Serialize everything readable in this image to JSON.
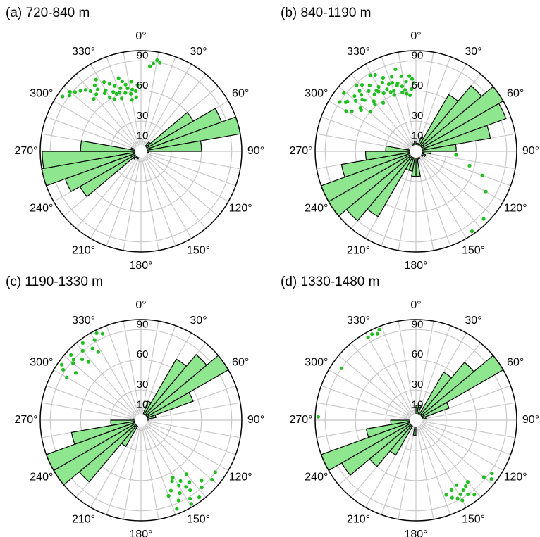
{
  "chart_data": [
    {
      "type": "rose",
      "title": "(a) 720-840 m",
      "bins": [
        0,
        10,
        20,
        30,
        40,
        50,
        60,
        70,
        80,
        90,
        100,
        110,
        120,
        130,
        140,
        150,
        160,
        170,
        180,
        190,
        200,
        210,
        220,
        230,
        240,
        250,
        260,
        270,
        280,
        290,
        300,
        310,
        320,
        330,
        340,
        350,
        360
      ],
      "counts": [
        5,
        5,
        5,
        5,
        12,
        60,
        85,
        100,
        60,
        8,
        5,
        3,
        3,
        3,
        3,
        3,
        3,
        5,
        5,
        5,
        8,
        8,
        10,
        70,
        80,
        100,
        98,
        60,
        10,
        5,
        5,
        3,
        3,
        3,
        3,
        5
      ],
      "points": {
        "theta": [
          330,
          335,
          340,
          345,
          350,
          325,
          320,
          318,
          315,
          312,
          322,
          328,
          338,
          342,
          348,
          352,
          355,
          357,
          345,
          335,
          325,
          310,
          305,
          308,
          330,
          340,
          350,
          355,
          333,
          347,
          337,
          343,
          8,
          10,
          12,
          6,
          318,
          328,
          332,
          352
        ],
        "r": [
          70,
          65,
          62,
          60,
          58,
          75,
          78,
          82,
          85,
          88,
          72,
          68,
          70,
          66,
          64,
          62,
          60,
          66,
          72,
          74,
          80,
          92,
          95,
          90,
          62,
          56,
          52,
          54,
          58,
          68,
          62,
          76,
          88,
          92,
          90,
          85,
          70,
          84,
          78,
          70
        ]
      },
      "rlim": [
        0,
        100
      ],
      "rticks": [
        10,
        30,
        60,
        90
      ],
      "thetaticks": [
        {
          "value": 0,
          "label": "0°"
        },
        {
          "value": 30,
          "label": "30°"
        },
        {
          "value": 60,
          "label": "60°"
        },
        {
          "value": 90,
          "label": "90°"
        },
        {
          "value": 120,
          "label": "120°"
        },
        {
          "value": 150,
          "label": "150°"
        },
        {
          "value": 180,
          "label": "180°"
        },
        {
          "value": 210,
          "label": "210°"
        },
        {
          "value": 240,
          "label": "240°"
        },
        {
          "value": 270,
          "label": "270°"
        },
        {
          "value": 300,
          "label": "300°"
        },
        {
          "value": 330,
          "label": "330°"
        }
      ],
      "bar_color": "#8ee68e",
      "edge_color": "#000000",
      "point_color": "#1fbf1f",
      "grid": true
    },
    {
      "type": "rose",
      "title": "(b) 840-1190 m",
      "bins": [
        0,
        10,
        20,
        30,
        40,
        50,
        60,
        70,
        80,
        90,
        100,
        110,
        120,
        130,
        140,
        150,
        160,
        170,
        180,
        190,
        200,
        210,
        220,
        230,
        240,
        250,
        260,
        270,
        280,
        290,
        300,
        310,
        320,
        330,
        340,
        350,
        360
      ],
      "counts": [
        8,
        8,
        15,
        65,
        85,
        100,
        95,
        75,
        40,
        15,
        8,
        10,
        8,
        5,
        5,
        8,
        8,
        25,
        25,
        20,
        20,
        75,
        90,
        100,
        100,
        75,
        50,
        30,
        8,
        5,
        5,
        5,
        5,
        8,
        8,
        10
      ],
      "points": {
        "theta": [
          300,
          302,
          305,
          308,
          310,
          312,
          315,
          318,
          320,
          322,
          325,
          328,
          330,
          332,
          335,
          338,
          340,
          342,
          345,
          348,
          350,
          352,
          355,
          358,
          303,
          307,
          311,
          316,
          321,
          326,
          331,
          336,
          341,
          346,
          351,
          356,
          309,
          314,
          319,
          324,
          329,
          334,
          339,
          344,
          349,
          354,
          306,
          317,
          327,
          337,
          347,
          357,
          105,
          110,
          120,
          135,
          145,
          95
        ],
        "r": [
          80,
          75,
          85,
          70,
          78,
          82,
          72,
          88,
          65,
          76,
          80,
          70,
          74,
          86,
          68,
          72,
          64,
          78,
          70,
          66,
          62,
          70,
          75,
          68,
          90,
          68,
          60,
          78,
          85,
          58,
          66,
          80,
          72,
          84,
          58,
          62,
          92,
          74,
          62,
          70,
          88,
          76,
          60,
          68,
          76,
          56,
          84,
          82,
          72,
          64,
          60,
          72,
          55,
          70,
          80,
          95,
          97,
          40
        ]
      },
      "rlim": [
        0,
        100
      ],
      "rticks": [
        10,
        30,
        60,
        90
      ],
      "thetaticks": [
        {
          "value": 0,
          "label": "0°"
        },
        {
          "value": 30,
          "label": "30°"
        },
        {
          "value": 60,
          "label": "60°"
        },
        {
          "value": 90,
          "label": "90°"
        },
        {
          "value": 120,
          "label": "120°"
        },
        {
          "value": 150,
          "label": "150°"
        },
        {
          "value": 180,
          "label": "180°"
        },
        {
          "value": 210,
          "label": "210°"
        },
        {
          "value": 240,
          "label": "240°"
        },
        {
          "value": 270,
          "label": "270°"
        },
        {
          "value": 300,
          "label": "300°"
        },
        {
          "value": 330,
          "label": "330°"
        }
      ],
      "bar_color": "#8ee68e",
      "edge_color": "#000000",
      "point_color": "#1fbf1f",
      "grid": true
    },
    {
      "type": "rose",
      "title": "(c) 1190-1330 m",
      "bins": [
        0,
        10,
        20,
        30,
        40,
        50,
        60,
        70,
        80,
        90,
        100,
        110,
        120,
        130,
        140,
        150,
        160,
        170,
        180,
        190,
        200,
        210,
        220,
        230,
        240,
        250,
        260,
        270,
        280,
        290,
        300,
        310,
        320,
        330,
        340,
        350,
        360
      ],
      "counts": [
        5,
        5,
        20,
        70,
        85,
        100,
        55,
        15,
        8,
        5,
        3,
        3,
        3,
        3,
        3,
        3,
        3,
        5,
        5,
        5,
        5,
        30,
        80,
        100,
        100,
        70,
        30,
        8,
        5,
        3,
        3,
        3,
        3,
        3,
        5,
        5
      ],
      "points": {
        "theta": [
          300,
          303,
          306,
          310,
          313,
          316,
          320,
          323,
          326,
          330,
          333,
          336,
          305,
          318,
          328,
          312,
          140,
          142,
          145,
          148,
          150,
          152,
          155,
          158,
          160,
          138,
          143,
          147,
          153,
          157,
          135,
          130,
          125,
          149,
          151,
          146
        ],
        "r": [
          85,
          92,
          80,
          88,
          95,
          84,
          90,
          96,
          86,
          92,
          97,
          94,
          96,
          78,
          80,
          90,
          70,
          78,
          85,
          92,
          75,
          82,
          88,
          95,
          80,
          90,
          96,
          72,
          68,
          76,
          85,
          92,
          90,
          97,
          65,
          80
        ]
      },
      "rlim": [
        0,
        100
      ],
      "rticks": [
        10,
        30,
        60,
        90
      ],
      "thetaticks": [
        {
          "value": 0,
          "label": "0°"
        },
        {
          "value": 30,
          "label": "30°"
        },
        {
          "value": 60,
          "label": "60°"
        },
        {
          "value": 90,
          "label": "90°"
        },
        {
          "value": 120,
          "label": "120°"
        },
        {
          "value": 150,
          "label": "150°"
        },
        {
          "value": 180,
          "label": "180°"
        },
        {
          "value": 210,
          "label": "210°"
        },
        {
          "value": 240,
          "label": "240°"
        },
        {
          "value": 270,
          "label": "270°"
        },
        {
          "value": 300,
          "label": "300°"
        },
        {
          "value": 330,
          "label": "330°"
        }
      ],
      "bar_color": "#8ee68e",
      "edge_color": "#000000",
      "point_color": "#1fbf1f",
      "grid": true
    },
    {
      "type": "rose",
      "title": "(d) 1330-1480 m",
      "bins": [
        0,
        10,
        20,
        30,
        40,
        50,
        60,
        70,
        80,
        90,
        100,
        110,
        120,
        130,
        140,
        150,
        160,
        170,
        180,
        190,
        200,
        210,
        220,
        230,
        240,
        250,
        260,
        270,
        280,
        290,
        300,
        310,
        320,
        330,
        340,
        350,
        360
      ],
      "counts": [
        15,
        15,
        5,
        55,
        75,
        100,
        35,
        10,
        5,
        3,
        3,
        3,
        3,
        3,
        3,
        3,
        5,
        5,
        15,
        5,
        5,
        40,
        60,
        85,
        100,
        50,
        25,
        5,
        3,
        3,
        3,
        3,
        3,
        3,
        3,
        5
      ],
      "points": {
        "theta": [
          330,
          333,
          336,
          338,
          305,
          272,
          130,
          125,
          128,
          140,
          143,
          146,
          149,
          152,
          155,
          158,
          145,
          150,
          153,
          148,
          142
        ],
        "r": [
          95,
          96,
          94,
          97,
          90,
          97,
          88,
          92,
          95,
          80,
          82,
          84,
          86,
          88,
          85,
          80,
          90,
          92,
          78,
          76,
          94
        ]
      },
      "rlim": [
        0,
        100
      ],
      "rticks": [
        10,
        30,
        60,
        90
      ],
      "thetaticks": [
        {
          "value": 0,
          "label": "0°"
        },
        {
          "value": 30,
          "label": "30°"
        },
        {
          "value": 60,
          "label": "60°"
        },
        {
          "value": 90,
          "label": "90°"
        },
        {
          "value": 120,
          "label": "120°"
        },
        {
          "value": 150,
          "label": "150°"
        },
        {
          "value": 180,
          "label": "180°"
        },
        {
          "value": 210,
          "label": "210°"
        },
        {
          "value": 240,
          "label": "240°"
        },
        {
          "value": 270,
          "label": "270°"
        },
        {
          "value": 300,
          "label": "300°"
        },
        {
          "value": 330,
          "label": "330°"
        }
      ],
      "bar_color": "#8ee68e",
      "edge_color": "#000000",
      "point_color": "#1fbf1f",
      "grid": true
    }
  ]
}
